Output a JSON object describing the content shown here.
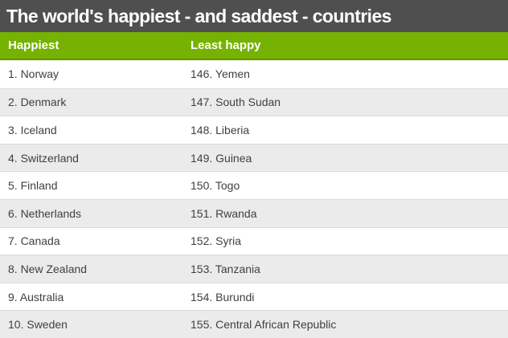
{
  "title_bar": {
    "title": "The world's happiest - and saddest - countries"
  },
  "chart_data": {
    "type": "table",
    "title": "The world's happiest - and saddest - countries",
    "columns": [
      "Happiest",
      "Least happy"
    ],
    "rows": [
      [
        "1. Norway",
        "146. Yemen"
      ],
      [
        "2. Denmark",
        "147. South Sudan"
      ],
      [
        "3. Iceland",
        "148. Liberia"
      ],
      [
        "4. Switzerland",
        "149. Guinea"
      ],
      [
        "5. Finland",
        "150. Togo"
      ],
      [
        "6. Netherlands",
        "151. Rwanda"
      ],
      [
        "7. Canada",
        "152. Syria"
      ],
      [
        "8. New Zealand",
        "153. Tanzania"
      ],
      [
        "9. Australia",
        "154. Burundi"
      ],
      [
        "10. Sweden",
        "155. Central African Republic"
      ]
    ],
    "series": [
      {
        "name": "Happiest",
        "ranks": [
          1,
          2,
          3,
          4,
          5,
          6,
          7,
          8,
          9,
          10
        ],
        "values": [
          "Norway",
          "Denmark",
          "Iceland",
          "Switzerland",
          "Finland",
          "Netherlands",
          "Canada",
          "New Zealand",
          "Australia",
          "Sweden"
        ]
      },
      {
        "name": "Least happy",
        "ranks": [
          146,
          147,
          148,
          149,
          150,
          151,
          152,
          153,
          154,
          155
        ],
        "values": [
          "Yemen",
          "South Sudan",
          "Liberia",
          "Guinea",
          "Togo",
          "Rwanda",
          "Syria",
          "Tanzania",
          "Burundi",
          "Central African Republic"
        ]
      }
    ],
    "layout": {
      "striped_rows": true,
      "header_position": "top"
    }
  },
  "colors": {
    "title_bar_bg": "#4f4f50",
    "title_text": "#ffffff",
    "header_bg": "#76b201",
    "header_border_bottom": "#629400",
    "header_text": "#ffffff",
    "row_bg": "#ffffff",
    "row_alt_bg": "#ebebeb",
    "row_border": "#dadada",
    "row_text": "#404040"
  }
}
